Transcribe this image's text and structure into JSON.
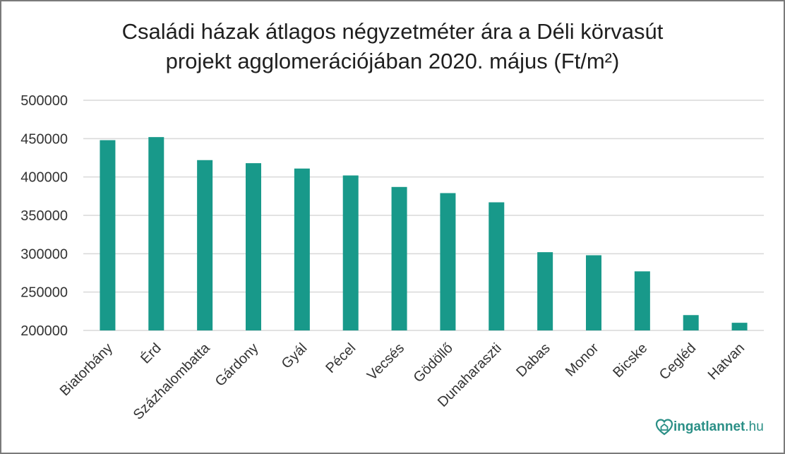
{
  "chart_data": {
    "type": "bar",
    "title_line1": "Családi házak átlagos négyzetméter ára a Déli körvasút",
    "title_line2": "projekt agglomerációjában 2020. május (Ft/m²)",
    "categories": [
      "Biatorbány",
      "Érd",
      "Százhalombatta",
      "Gárdony",
      "Gyál",
      "Pécel",
      "Vecsés",
      "Gödöllő",
      "Dunaharaszti",
      "Dabas",
      "Monor",
      "Bicske",
      "Cegléd",
      "Hatvan"
    ],
    "values": [
      448000,
      452000,
      422000,
      418000,
      411000,
      402000,
      387000,
      379000,
      367000,
      302000,
      298000,
      277000,
      220000,
      210000
    ],
    "ylim": [
      200000,
      500000
    ],
    "yticks": [
      "200000",
      "250000",
      "300000",
      "350000",
      "400000",
      "450000",
      "500000"
    ],
    "grid": true,
    "bar_color": "#18998a",
    "grid_color": "#d9d9d9"
  },
  "brand": {
    "name": "ingatlannet",
    "tld": ".hu",
    "color": "#2a8f86"
  }
}
